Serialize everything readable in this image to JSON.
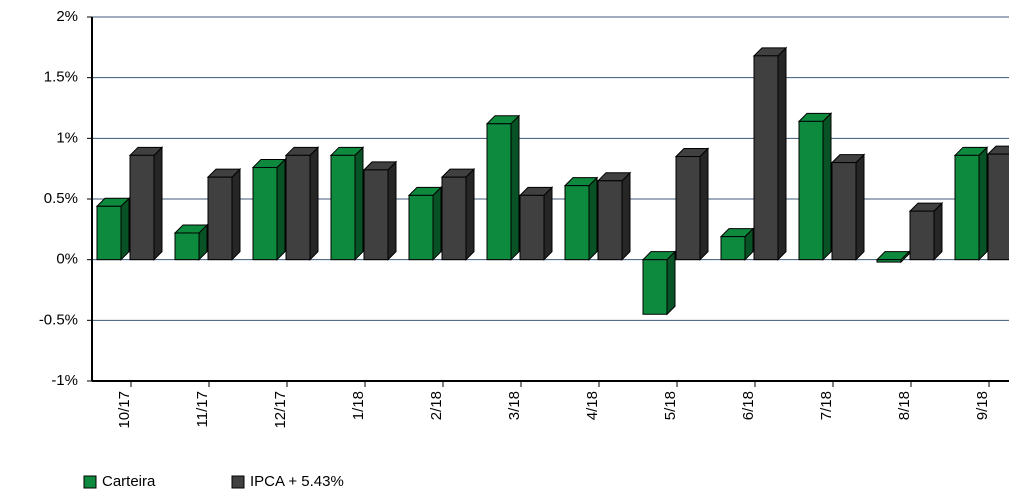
{
  "chart_data": {
    "type": "bar3d",
    "categories": [
      "10/17",
      "11/17",
      "12/17",
      "1/18",
      "2/18",
      "3/18",
      "4/18",
      "5/18",
      "6/18",
      "7/18",
      "8/18",
      "9/18"
    ],
    "series": [
      {
        "name": "Carteira",
        "color": "#0e8a3e",
        "values": [
          0.44,
          0.22,
          0.76,
          0.86,
          0.53,
          1.12,
          0.61,
          -0.45,
          0.19,
          1.14,
          -0.02,
          0.86
        ]
      },
      {
        "name": "IPCA + 5.43%",
        "color": "#404040",
        "values": [
          0.86,
          0.68,
          0.86,
          0.74,
          0.68,
          0.53,
          0.65,
          0.85,
          1.68,
          0.8,
          0.4,
          0.87
        ]
      }
    ],
    "ylim": [
      -1,
      2
    ],
    "yticks": [
      {
        "value": -1,
        "label": "-1%"
      },
      {
        "value": -0.5,
        "label": "-0.5%"
      },
      {
        "value": 0,
        "label": "0%"
      },
      {
        "value": 0.5,
        "label": "0.5%"
      },
      {
        "value": 1,
        "label": "1%"
      },
      {
        "value": 1.5,
        "label": "1.5%"
      },
      {
        "value": 2,
        "label": "2%"
      }
    ],
    "grid": true
  }
}
